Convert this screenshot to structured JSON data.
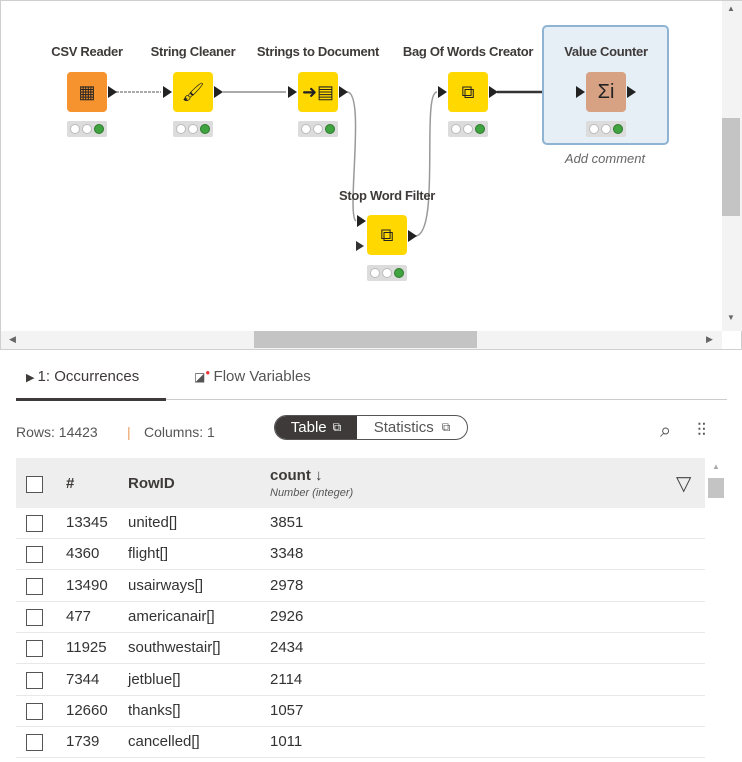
{
  "workflow": {
    "nodes": [
      {
        "label": "CSV Reader",
        "icon": "table-arrow-icon",
        "color": "#f7932f"
      },
      {
        "label": "String Cleaner",
        "icon": "brush-icon",
        "color": "#ffd800"
      },
      {
        "label": "Strings to Document",
        "icon": "document-import-icon",
        "color": "#ffd800"
      },
      {
        "label": "Bag Of Words Creator",
        "icon": "documents-transform-icon",
        "color": "#ffd800"
      },
      {
        "label": "Value Counter",
        "icon": "sigma-icon",
        "color": "#d6a283",
        "glyph": "Σi"
      },
      {
        "label": "Stop Word Filter",
        "icon": "documents-transform-icon",
        "color": "#ffd800"
      }
    ],
    "selected_comment": "Add comment"
  },
  "output": {
    "tabs": [
      {
        "label": "1: Occurrences",
        "active": true
      },
      {
        "label": "Flow Variables"
      }
    ],
    "rows_label": "Rows: 14423",
    "separator": "|",
    "columns_label": "Columns: 1",
    "view_toggle": {
      "table": "Table",
      "statistics": "Statistics",
      "selected": "Table"
    },
    "table": {
      "headers": {
        "index": "#",
        "rowid": "RowID",
        "count": "count",
        "count_type": "Number (integer)",
        "sort": "↓"
      },
      "rows": [
        {
          "index": "13345",
          "rowid": "united[]",
          "count": "3851"
        },
        {
          "index": "4360",
          "rowid": "flight[]",
          "count": "3348"
        },
        {
          "index": "13490",
          "rowid": "usairways[]",
          "count": "2978"
        },
        {
          "index": "477",
          "rowid": "americanair[]",
          "count": "2926"
        },
        {
          "index": "11925",
          "rowid": "southwestair[]",
          "count": "2434"
        },
        {
          "index": "7344",
          "rowid": "jetblue[]",
          "count": "2114"
        },
        {
          "index": "12660",
          "rowid": "thanks[]",
          "count": "1057"
        },
        {
          "index": "1739",
          "rowid": "cancelled[]",
          "count": "1011"
        }
      ]
    }
  }
}
